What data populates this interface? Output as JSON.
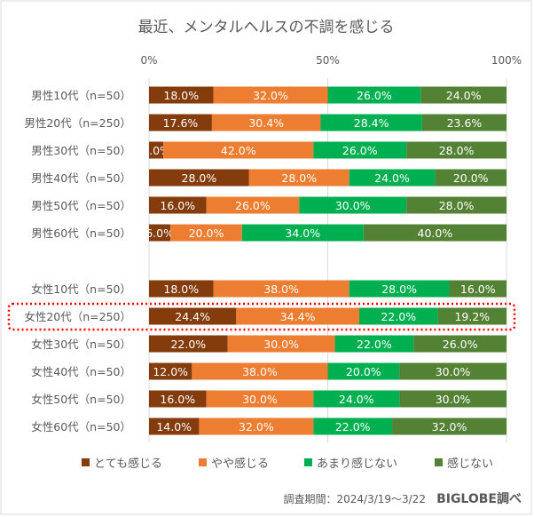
{
  "chart_data": {
    "type": "bar",
    "orientation": "horizontal",
    "stacked": true,
    "title": "最近、メンタルヘルスの不調を感じる",
    "categories": [
      "男性10代（n=50）",
      "男性20代（n=250）",
      "男性30代（n=50）",
      "男性40代（n=50）",
      "男性50代（n=50）",
      "男性60代（n=50）",
      "女性10代（n=50）",
      "女性20代（n=250）",
      "女性30代（n=50）",
      "女性40代（n=50）",
      "女性50代（n=50）",
      "女性60代（n=50）"
    ],
    "series": [
      {
        "name": "とても感じる",
        "color": "#843C0C",
        "values": [
          18.0,
          17.6,
          4.0,
          28.0,
          16.0,
          6.0,
          18.0,
          24.4,
          22.0,
          12.0,
          16.0,
          14.0
        ]
      },
      {
        "name": "やや感じる",
        "color": "#ED7D31",
        "values": [
          32.0,
          30.4,
          42.0,
          28.0,
          26.0,
          20.0,
          38.0,
          34.4,
          30.0,
          38.0,
          30.0,
          32.0
        ]
      },
      {
        "name": "あまり感じない",
        "color": "#00B050",
        "values": [
          26.0,
          28.4,
          26.0,
          24.0,
          30.0,
          34.0,
          28.0,
          22.0,
          22.0,
          20.0,
          24.0,
          22.0
        ]
      },
      {
        "name": "感じない",
        "color": "#548235",
        "values": [
          24.0,
          23.6,
          28.0,
          20.0,
          28.0,
          40.0,
          16.0,
          19.2,
          26.0,
          30.0,
          30.0,
          32.0
        ]
      }
    ],
    "xlim": [
      0,
      100
    ],
    "x_ticks": [
      "0%",
      "50%",
      "100%"
    ],
    "grid": true,
    "legend_position": "bottom",
    "highlighted_category": "女性20代（n=250）",
    "highlight_color": "#FF0000"
  },
  "footer": {
    "period": "調査期間：2024/3/19～3/22",
    "source": "BIGLOBE調べ"
  }
}
